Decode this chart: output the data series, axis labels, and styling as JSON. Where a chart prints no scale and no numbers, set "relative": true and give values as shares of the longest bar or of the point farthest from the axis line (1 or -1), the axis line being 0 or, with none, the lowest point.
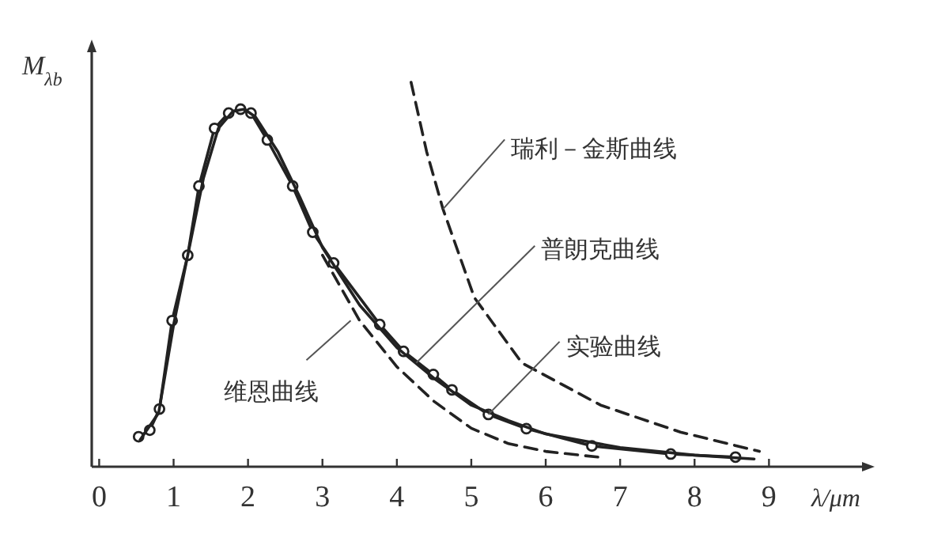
{
  "chart_data": {
    "type": "line",
    "relative": true,
    "ylabel": "M$_{λb}$",
    "xlabel": "λ/μm",
    "xlim": [
      -0.1,
      10.25
    ],
    "xticks": [
      0,
      1,
      2,
      3,
      4,
      5,
      6,
      7,
      8,
      9
    ],
    "grid": false,
    "series": [
      {
        "color": "#222222",
        "marker": "circle",
        "line_style": "solid",
        "x": [
          0.53,
          0.68,
          0.81,
          0.98,
          1.19,
          1.34,
          1.55,
          1.74,
          1.9,
          2.04,
          2.26,
          2.6,
          2.87,
          3.15,
          3.77,
          4.09,
          4.49,
          4.74,
          5.23,
          5.74,
          6.62,
          7.68,
          8.55
        ],
        "values": [
          0.078,
          0.095,
          0.15,
          0.38,
          0.55,
          0.73,
          0.88,
          0.92,
          0.93,
          0.92,
          0.85,
          0.73,
          0.61,
          0.53,
          0.37,
          0.3,
          0.24,
          0.2,
          0.136,
          0.099,
          0.054,
          0.033,
          0.025
        ]
      },
      {
        "color": "#222222",
        "marker": "none",
        "line_style": "solid",
        "x": [
          0.55,
          0.8,
          1.0,
          1.2,
          1.4,
          1.6,
          1.8,
          1.95,
          2.1,
          2.4,
          2.7,
          3.0,
          3.5,
          4.0,
          4.5,
          5.0,
          5.5,
          6.0,
          7.0,
          8.0,
          8.8
        ],
        "values": [
          0.07,
          0.14,
          0.37,
          0.56,
          0.75,
          0.88,
          0.925,
          0.93,
          0.91,
          0.82,
          0.7,
          0.57,
          0.42,
          0.31,
          0.23,
          0.16,
          0.12,
          0.085,
          0.05,
          0.03,
          0.02
        ]
      },
      {
        "color": "#222222",
        "marker": "none",
        "line_style": "dashed",
        "x": [
          3.0,
          3.5,
          4.0,
          4.5,
          5.0,
          5.5,
          6.0,
          6.7
        ],
        "values": [
          0.55,
          0.38,
          0.26,
          0.17,
          0.1,
          0.06,
          0.04,
          0.025
        ]
      },
      {
        "color": "#222222",
        "marker": "none",
        "line_style": "dashed",
        "x": [
          4.19,
          4.4,
          4.62,
          5.04,
          5.68,
          6.74,
          7.81,
          8.87
        ],
        "values": [
          1.0,
          0.82,
          0.67,
          0.44,
          0.27,
          0.16,
          0.09,
          0.04
        ]
      }
    ],
    "annotations": [
      {
        "text": "瑞利－金斯曲线",
        "x": 4.62,
        "y": 0.67
      },
      {
        "text": "普朗克曲线",
        "x": 4.26,
        "y": 0.27
      },
      {
        "text": "实验曲线",
        "x": 5.23,
        "y": 0.136
      },
      {
        "text": "维恩曲线",
        "x": 3.38,
        "y": 0.38
      }
    ]
  }
}
